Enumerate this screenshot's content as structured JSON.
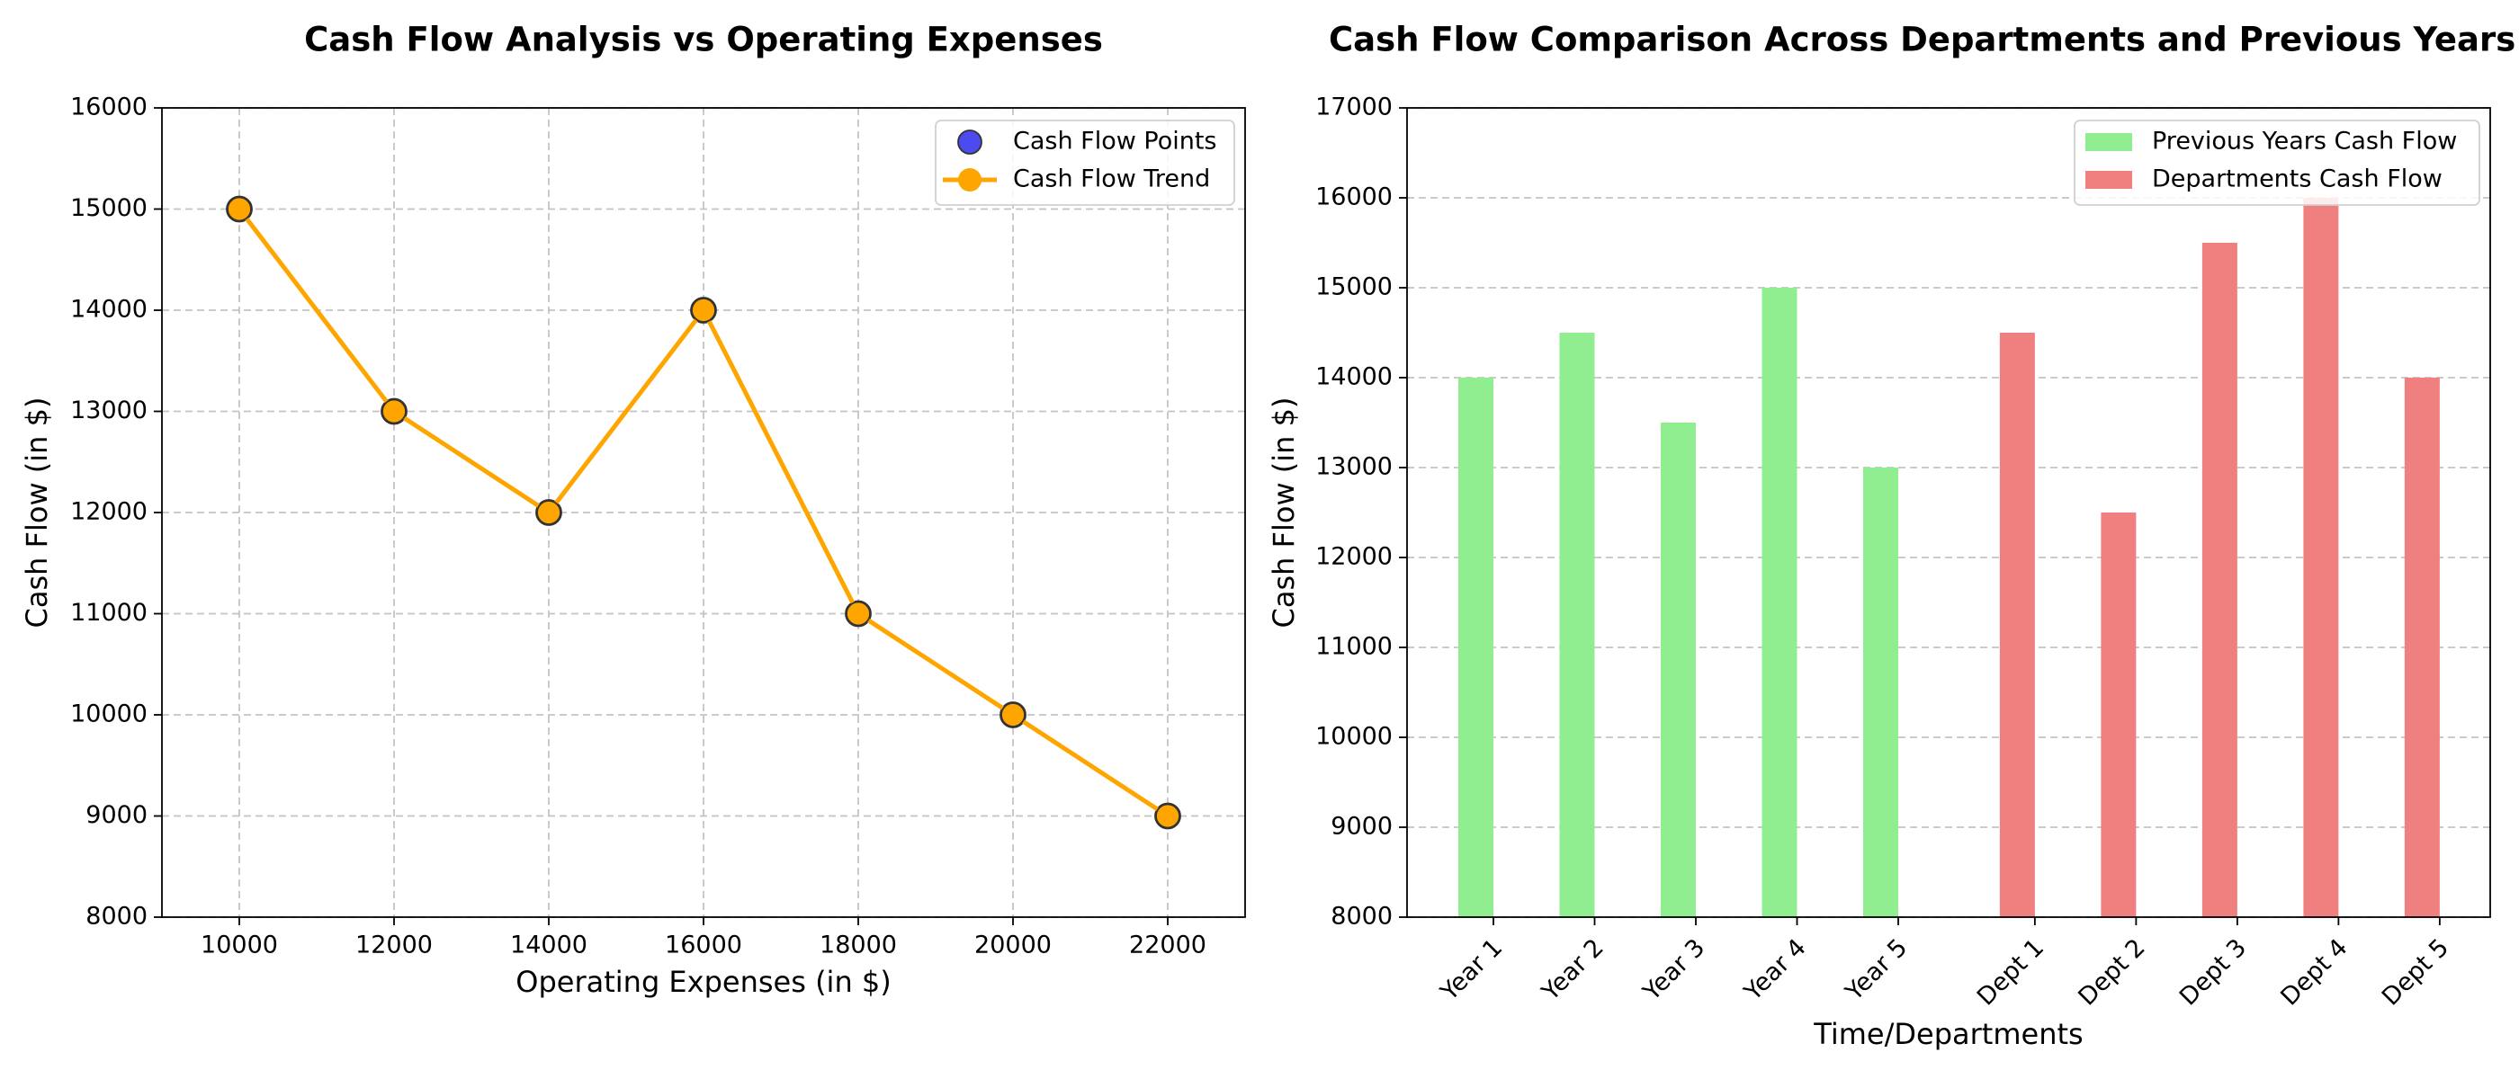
{
  "chart_data": [
    {
      "type": "line",
      "title": "Cash Flow Analysis vs Operating Expenses",
      "x_label": "Operating Expenses (in $)",
      "y_label": "Cash Flow (in $)",
      "x": [
        10000,
        12000,
        14000,
        16000,
        18000,
        20000,
        22000
      ],
      "series": [
        {
          "name": "Cash Flow Points",
          "type": "scatter",
          "color": "#4b4bf0",
          "values": [
            15000,
            13000,
            12000,
            14000,
            11000,
            10000,
            9000
          ]
        },
        {
          "name": "Cash Flow Trend",
          "type": "line",
          "color": "#ffa500",
          "values": [
            15000,
            13000,
            12000,
            14000,
            11000,
            10000,
            9000
          ]
        }
      ],
      "xlim": [
        9000,
        23000
      ],
      "xticks": [
        10000,
        12000,
        14000,
        16000,
        18000,
        20000,
        22000
      ],
      "ylim": [
        8000,
        16000
      ],
      "yticks": [
        8000,
        9000,
        10000,
        11000,
        12000,
        13000,
        14000,
        15000,
        16000
      ],
      "grid": "both",
      "legend": "upper right"
    },
    {
      "type": "bar",
      "title": "Cash Flow Comparison Across Departments and Previous Years",
      "x_label": "Time/Departments",
      "y_label": "Cash Flow (in $)",
      "categories": [
        "Year 1",
        "Year 2",
        "Year 3",
        "Year 4",
        "Year 5",
        "Dept 1",
        "Dept 2",
        "Dept 3",
        "Dept 4",
        "Dept 5"
      ],
      "series": [
        {
          "name": "Previous Years Cash Flow",
          "color": "#90ee90",
          "values": [
            14000,
            14500,
            13500,
            15000,
            13000,
            null,
            null,
            null,
            null,
            null
          ]
        },
        {
          "name": "Departments Cash Flow",
          "color": "#f08080",
          "values": [
            null,
            null,
            null,
            null,
            null,
            14500,
            12500,
            15500,
            16000,
            14000
          ]
        }
      ],
      "ylim": [
        8000,
        17000
      ],
      "yticks": [
        8000,
        9000,
        10000,
        11000,
        12000,
        13000,
        14000,
        15000,
        16000,
        17000
      ],
      "grid": "y",
      "legend": "upper right"
    }
  ]
}
